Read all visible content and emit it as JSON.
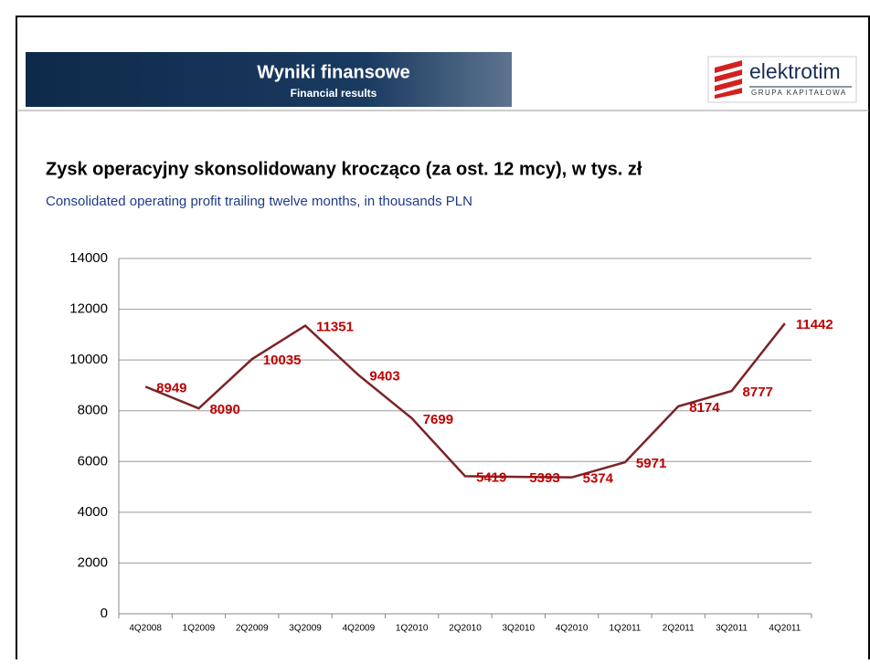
{
  "header": {
    "title": "Wyniki finansowe",
    "subtitle": "Financial results",
    "logo_name": "elektrotim",
    "logo_tagline": "GRUPA KAPITAŁOWA"
  },
  "chart_data": {
    "type": "line",
    "title": "Zysk operacyjny skonsolidowany krocząco (za ost. 12 mcy), w tys. zł",
    "subtitle": "Consolidated operating profit trailing twelve months, in thousands PLN",
    "categories": [
      "4Q2008",
      "1Q2009",
      "2Q2009",
      "3Q2009",
      "4Q2009",
      "1Q2010",
      "2Q2010",
      "3Q2010",
      "4Q2010",
      "1Q2011",
      "2Q2011",
      "3Q2011",
      "4Q2011"
    ],
    "values": [
      8949,
      8090,
      10035,
      11351,
      9403,
      7699,
      5419,
      5393,
      5374,
      5971,
      8174,
      8777,
      11442
    ],
    "color": "#7b2326",
    "label_color": "#c00000",
    "ylim": [
      0,
      14000
    ],
    "yticks": [
      0,
      2000,
      4000,
      6000,
      8000,
      10000,
      12000,
      14000
    ],
    "grid": true
  }
}
